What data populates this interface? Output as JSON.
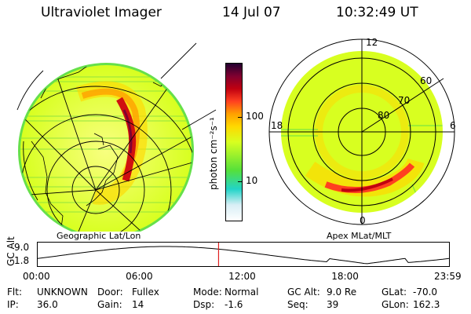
{
  "header": {
    "instrument": "Ultraviolet Imager",
    "date": "14 Jul 07",
    "time": "10:32:49 UT"
  },
  "left_map": {
    "label": "Geographic Lat/Lon"
  },
  "right_map": {
    "label": "Apex MLat/MLT",
    "mlt_labels": [
      "12",
      "18",
      "6",
      "0"
    ],
    "lat_labels": [
      "60",
      "70",
      "80"
    ]
  },
  "colorbar": {
    "unit_label": "photon cm⁻²s⁻¹",
    "ticks": [
      {
        "label": "100",
        "value": 100
      },
      {
        "label": "10",
        "value": 10
      }
    ],
    "colors": [
      "#ffffff",
      "#d8eef5",
      "#22d4c8",
      "#55e03a",
      "#d8ff20",
      "#ffd800",
      "#ffa000",
      "#ff4020",
      "#c00010",
      "#800030",
      "#220030"
    ]
  },
  "timeline": {
    "ylabel": "GC Alt",
    "yticks": [
      {
        "label": "9.0",
        "value": 9.0
      },
      {
        "label": "1.8",
        "value": 1.8
      }
    ],
    "xticks": [
      {
        "label": "00:00",
        "hour": 0
      },
      {
        "label": "06:00",
        "hour": 6
      },
      {
        "label": "12:00",
        "hour": 12
      },
      {
        "label": "18:00",
        "hour": 18
      },
      {
        "label": "23:59",
        "hour": 23.983
      }
    ],
    "current_hour": 10.547,
    "marker_color": "#e02020"
  },
  "info": {
    "row1": [
      {
        "key": "Flt:",
        "value": "UNKNOWN"
      },
      {
        "key": "Door:",
        "value": "Fullex"
      },
      {
        "key": "Mode:",
        "value": "Normal"
      },
      {
        "key": "GC Alt:",
        "value": "9.0 Re"
      },
      {
        "key": "GLat:",
        "value": "-70.0"
      }
    ],
    "row2": [
      {
        "key": "IP:",
        "value": "36.0"
      },
      {
        "key": "Gain:",
        "value": "14"
      },
      {
        "key": "Dsp:",
        "value": "-1.6"
      },
      {
        "key": "Seq:",
        "value": "39"
      },
      {
        "key": "GLon:",
        "value": "162.3"
      }
    ]
  }
}
